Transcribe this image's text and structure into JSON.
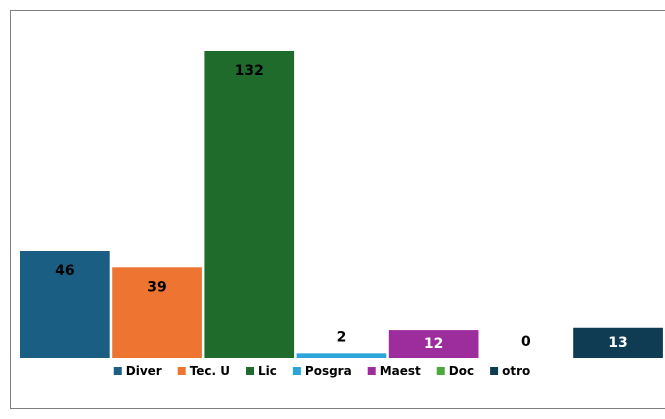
{
  "chart_data": {
    "type": "bar",
    "categories": [
      "Diver",
      "Tec. U",
      "Lic",
      "Posgra",
      "Maest",
      "Doc",
      "otro"
    ],
    "values": [
      46,
      39,
      132,
      2,
      12,
      0,
      13
    ],
    "colors": [
      "#1b5e83",
      "#ed7431",
      "#1e6b2b",
      "#2ba5d8",
      "#9d2c9c",
      "#4ca93b",
      "#0f3b53"
    ],
    "label_colors": [
      "#000000",
      "#000000",
      "#000000",
      "#000000",
      "#ffffff",
      "#000000",
      "#ffffff"
    ],
    "legend": "bottom"
  }
}
